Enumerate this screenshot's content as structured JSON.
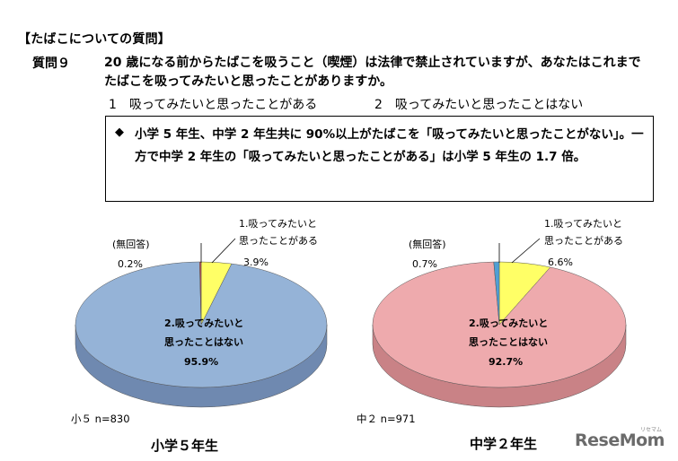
{
  "heading": "【たばこについての質問】",
  "question": {
    "label": "質問９",
    "text": "20 歳になる前からたばこを吸うこと（喫煙）は法律で禁止されていますが、あなたはこれまでたばこを吸ってみたいと思ったことがありますか。",
    "option1": "1　吸ってみたいと思ったことがある",
    "option2": "2　吸ってみたいと思ったことはない"
  },
  "summary": {
    "bullet": "◆",
    "text": "小学 5 年生、中学 2 年生共に 90%以上がたばこを「吸ってみたいと思ったことがない」。一方で中学 2 年生の「吸ってみたいと思ったことがある」は小学 5 年生の 1.7 倍。"
  },
  "chart_data": [
    {
      "type": "pie",
      "title": "小学５年生",
      "note": "小５ n=830",
      "slices": [
        {
          "label_line1": "1.吸ってみたいと",
          "label_line2": "思ったことがある",
          "value": 3.9,
          "value_label": "3.9%",
          "color": "#ffff66"
        },
        {
          "label_line1": "2.吸ってみたいと",
          "label_line2": "思ったことはない",
          "value": 95.9,
          "value_label": "95.9%",
          "color": "#95b3d7"
        },
        {
          "label_line1": "(無回答)",
          "label_line2": "",
          "value": 0.2,
          "value_label": "0.2%",
          "color": "#c0504d"
        }
      ],
      "side_color": "#6f89b0"
    },
    {
      "type": "pie",
      "title": "中学２年生",
      "note": "中２ n=971",
      "slices": [
        {
          "label_line1": "1.吸ってみたいと",
          "label_line2": "思ったことがある",
          "value": 6.6,
          "value_label": "6.6%",
          "color": "#ffff66"
        },
        {
          "label_line1": "2.吸ってみたいと",
          "label_line2": "思ったことはない",
          "value": 92.7,
          "value_label": "92.7%",
          "color": "#eeaaad"
        },
        {
          "label_line1": "(無回答)",
          "label_line2": "",
          "value": 0.7,
          "value_label": "0.7%",
          "color": "#4f9fd4"
        }
      ],
      "side_color": "#c98286"
    }
  ],
  "logo": {
    "text": "ReseMom",
    "sub": "リセマム"
  }
}
